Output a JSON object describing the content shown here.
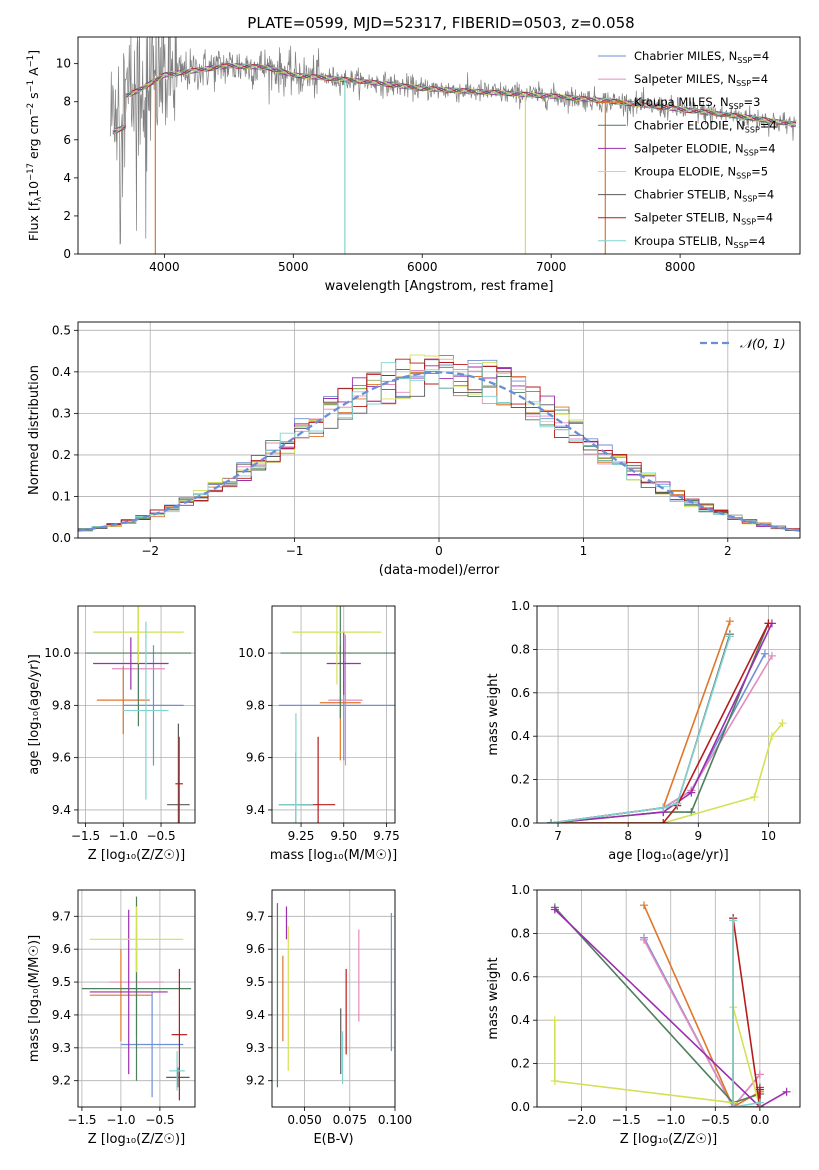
{
  "figure": {
    "title": "PLATE=0599, MJD=52317, FIBERID=0503, z=0.058"
  },
  "colors": {
    "Chabrier MILES": "#6f8fd6",
    "Salpeter MILES": "#e48bc0",
    "Kroupa MILES": "#e0762a",
    "Chabrier ELODIE": "#4d7f5c",
    "Salpeter ELODIE": "#9b2fae",
    "Kroupa ELODIE": "#d4e157",
    "Chabrier STELIB": "#5a5a5a",
    "Salpeter STELIB": "#b71c1c",
    "Kroupa STELIB": "#80d4d0",
    "observed": "#808080",
    "normal_curve": "#6a8fd8"
  },
  "chart_data": [
    {
      "id": "spectrum",
      "type": "line",
      "title": "PLATE=0599, MJD=52317, FIBERID=0503, z=0.058",
      "xlabel": "wavelength [Angstrom, rest frame]",
      "ylabel_parts": [
        "Flux [f",
        "λ",
        "10",
        "−17",
        " erg cm",
        "−2",
        " s",
        "−1",
        " A",
        "−1",
        "]"
      ],
      "xlim": [
        3330,
        8930
      ],
      "ylim": [
        0,
        11.4
      ],
      "xticks": [
        4000,
        5000,
        6000,
        7000,
        8000
      ],
      "yticks": [
        0,
        2,
        4,
        6,
        8,
        10
      ],
      "grid": false,
      "legend_position": "top-right",
      "legend": [
        {
          "label": "Chabrier MILES, N",
          "sub": "SSP",
          "suffix": "=4",
          "key": "Chabrier MILES"
        },
        {
          "label": "Salpeter MILES, N",
          "sub": "SSP",
          "suffix": "=4",
          "key": "Salpeter MILES"
        },
        {
          "label": "Kroupa MILES, N",
          "sub": "SSP",
          "suffix": "=3",
          "key": "Kroupa MILES"
        },
        {
          "label": "Chabrier ELODIE, N",
          "sub": "SSP",
          "suffix": "=4",
          "key": "Chabrier ELODIE"
        },
        {
          "label": "Salpeter ELODIE, N",
          "sub": "SSP",
          "suffix": "=4",
          "key": "Salpeter ELODIE"
        },
        {
          "label": "Kroupa ELODIE, N",
          "sub": "SSP",
          "suffix": "=5",
          "key": "Kroupa ELODIE"
        },
        {
          "label": "Chabrier STELIB, N",
          "sub": "SSP",
          "suffix": "=4",
          "key": "Chabrier STELIB"
        },
        {
          "label": "Salpeter STELIB, N",
          "sub": "SSP",
          "suffix": "=4",
          "key": "Salpeter STELIB"
        },
        {
          "label": "Kroupa STELIB, N",
          "sub": "SSP",
          "suffix": "=4",
          "key": "Kroupa STELIB"
        }
      ],
      "continuum": [
        [
          3600,
          8.0
        ],
        [
          3800,
          8.6
        ],
        [
          4000,
          9.4
        ],
        [
          4200,
          9.6
        ],
        [
          4500,
          9.9
        ],
        [
          4800,
          9.8
        ],
        [
          5000,
          9.4
        ],
        [
          5500,
          9.1
        ],
        [
          6000,
          8.7
        ],
        [
          6500,
          8.5
        ],
        [
          7000,
          8.3
        ],
        [
          7500,
          8.0
        ],
        [
          8000,
          7.6
        ],
        [
          8500,
          7.2
        ],
        [
          8900,
          6.8
        ]
      ],
      "model_dips": [
        {
          "x": 3930,
          "y": 0,
          "key": "Kroupa MILES"
        },
        {
          "x": 5400,
          "y": 0,
          "key": "Kroupa STELIB"
        },
        {
          "x": 6800,
          "y": 0,
          "key": "Kroupa ELODIE"
        },
        {
          "x": 7420,
          "y": 0,
          "key": "Kroupa MILES"
        }
      ]
    },
    {
      "id": "residuals",
      "type": "bar",
      "xlabel": "(data-model)/error",
      "ylabel": "Normed distribution",
      "xlim": [
        -2.5,
        2.5
      ],
      "ylim": [
        0,
        0.52
      ],
      "xticks": [
        -2,
        -1,
        0,
        1,
        2
      ],
      "yticks": [
        0.0,
        0.1,
        0.2,
        0.3,
        0.4,
        0.5
      ],
      "grid": true,
      "legend_position": "top-right",
      "legend": [
        "𝒩(0, 1)"
      ],
      "bin_width": 0.1,
      "normal": {
        "mu": 0,
        "sigma": 1
      }
    },
    {
      "id": "age-vs-Z",
      "type": "scatter",
      "xlabel": "Z [log₁₀(Z/Z☉)]",
      "ylabel": "age  [log₁₀(age/yr)]",
      "xlim": [
        -1.6,
        -0.05
      ],
      "ylim": [
        9.35,
        10.18
      ],
      "xticks": [
        -1.5,
        -1.0,
        -0.5
      ],
      "yticks": [
        9.4,
        9.6,
        9.8,
        10.0
      ],
      "grid": true,
      "points": [
        {
          "key": "Chabrier MILES",
          "x": -0.6,
          "xerr": 0.4,
          "y": 9.8,
          "yerr": 0.23
        },
        {
          "key": "Salpeter MILES",
          "x": -0.8,
          "xerr": 0.35,
          "y": 9.94,
          "yerr": 0.12
        },
        {
          "key": "Kroupa MILES",
          "x": -1.0,
          "xerr": 0.35,
          "y": 9.82,
          "yerr": 0.13
        },
        {
          "key": "Chabrier ELODIE",
          "x": -0.8,
          "xerr": 0.7,
          "y": 10.0,
          "yerr": 0.28
        },
        {
          "key": "Salpeter ELODIE",
          "x": -0.9,
          "xerr": 0.5,
          "y": 9.96,
          "yerr": 0.1
        },
        {
          "key": "Kroupa ELODIE",
          "x": -0.8,
          "xerr": 0.6,
          "y": 10.08,
          "yerr": 0.12
        },
        {
          "key": "Chabrier STELIB",
          "x": -0.27,
          "xerr": 0.15,
          "y": 9.42,
          "yerr": 0.31
        },
        {
          "key": "Salpeter STELIB",
          "x": -0.26,
          "xerr": 0.05,
          "y": 9.5,
          "yerr": 0.18
        },
        {
          "key": "Kroupa STELIB",
          "x": -0.7,
          "xerr": 0.3,
          "y": 9.78,
          "yerr": 0.34
        }
      ]
    },
    {
      "id": "age-vs-mass",
      "type": "scatter",
      "xlabel": "mass [log₁₀(M/M☉)]",
      "ylabel": "",
      "xlim": [
        9.08,
        9.8
      ],
      "ylim": [
        9.35,
        10.18
      ],
      "xticks": [
        9.25,
        9.5,
        9.75
      ],
      "yticks": [
        9.4,
        9.6,
        9.8,
        10.0
      ],
      "grid": true,
      "points": [
        {
          "key": "Chabrier MILES",
          "x": 9.5,
          "xerr": 0.38,
          "y": 9.8,
          "yerr": 0.21
        },
        {
          "key": "Salpeter MILES",
          "x": 9.51,
          "xerr": 0.1,
          "y": 9.82,
          "yerr": 0.25
        },
        {
          "key": "Kroupa MILES",
          "x": 9.48,
          "xerr": 0.12,
          "y": 9.81,
          "yerr": 0.22
        },
        {
          "key": "Chabrier ELODIE",
          "x": 9.48,
          "xerr": 0.35,
          "y": 10.0,
          "yerr": 0.25
        },
        {
          "key": "Salpeter ELODIE",
          "x": 9.5,
          "xerr": 0.1,
          "y": 9.96,
          "yerr": 0.12
        },
        {
          "key": "Kroupa ELODIE",
          "x": 9.46,
          "xerr": 0.26,
          "y": 10.08,
          "yerr": 0.2
        },
        {
          "key": "Chabrier STELIB",
          "x": 9.22,
          "xerr": 0.1,
          "y": 9.42,
          "yerr": 0.2
        },
        {
          "key": "Salpeter STELIB",
          "x": 9.35,
          "xerr": 0.1,
          "y": 9.42,
          "yerr": 0.26
        },
        {
          "key": "Kroupa STELIB",
          "x": 9.22,
          "xerr": 0.1,
          "y": 9.42,
          "yerr": 0.35
        }
      ]
    },
    {
      "id": "mass-weight-vs-age",
      "type": "line",
      "xlabel": "age  [log₁₀(age/yr)]",
      "ylabel": "mass weight",
      "xlim": [
        6.7,
        10.45
      ],
      "ylim": [
        0,
        1.0
      ],
      "xticks": [
        7,
        8,
        9,
        10
      ],
      "yticks": [
        0.0,
        0.2,
        0.4,
        0.6,
        0.8,
        1.0
      ],
      "grid": true,
      "series": [
        {
          "key": "Chabrier MILES",
          "x": [
            6.9,
            8.5,
            8.9,
            9.95
          ],
          "y": [
            0.0,
            0.07,
            0.15,
            0.78
          ]
        },
        {
          "key": "Salpeter MILES",
          "x": [
            6.9,
            8.5,
            8.9,
            10.05
          ],
          "y": [
            0.0,
            0.07,
            0.15,
            0.77
          ]
        },
        {
          "key": "Kroupa MILES",
          "x": [
            6.9,
            8.5,
            9.45
          ],
          "y": [
            0.0,
            0.07,
            0.93
          ]
        },
        {
          "key": "Chabrier ELODIE",
          "x": [
            6.9,
            8.5,
            8.9,
            10.0
          ],
          "y": [
            0.0,
            0.05,
            0.05,
            0.92
          ]
        },
        {
          "key": "Salpeter ELODIE",
          "x": [
            6.9,
            8.5,
            8.9,
            10.05
          ],
          "y": [
            0.0,
            0.05,
            0.14,
            0.92
          ]
        },
        {
          "key": "Kroupa ELODIE",
          "x": [
            6.9,
            8.5,
            9.8,
            10.05,
            10.2
          ],
          "y": [
            0.0,
            0.0,
            0.12,
            0.4,
            0.46
          ]
        },
        {
          "key": "Chabrier STELIB",
          "x": [
            6.9,
            8.5,
            8.7,
            9.45
          ],
          "y": [
            0.0,
            0.07,
            0.09,
            0.87
          ]
        },
        {
          "key": "Salpeter STELIB",
          "x": [
            6.9,
            8.5,
            8.7,
            10.0
          ],
          "y": [
            0.0,
            0.0,
            0.08,
            0.92
          ]
        },
        {
          "key": "Kroupa STELIB",
          "x": [
            6.9,
            8.5,
            8.7,
            9.45
          ],
          "y": [
            0.0,
            0.07,
            0.09,
            0.86
          ]
        }
      ]
    },
    {
      "id": "mass-vs-Z",
      "type": "scatter",
      "xlabel": "Z [log₁₀(Z/Z☉)]",
      "ylabel": "mass [log₁₀(M/M☉)]",
      "xlim": [
        -1.55,
        -0.05
      ],
      "ylim": [
        9.12,
        9.78
      ],
      "xticks": [
        -1.5,
        -1.0,
        -0.5
      ],
      "yticks": [
        9.2,
        9.3,
        9.4,
        9.5,
        9.6,
        9.7
      ],
      "grid": true,
      "points": [
        {
          "key": "Chabrier MILES",
          "x": -0.6,
          "xerr": 0.4,
          "y": 9.31,
          "yerr": 0.16
        },
        {
          "key": "Salpeter MILES",
          "x": -0.8,
          "xerr": 0.35,
          "y": 9.5,
          "yerr": 0.16
        },
        {
          "key": "Kroupa MILES",
          "x": -1.0,
          "xerr": 0.4,
          "y": 9.46,
          "yerr": 0.14
        },
        {
          "key": "Chabrier ELODIE",
          "x": -0.8,
          "xerr": 0.7,
          "y": 9.48,
          "yerr": 0.28
        },
        {
          "key": "Salpeter ELODIE",
          "x": -0.9,
          "xerr": 0.5,
          "y": 9.47,
          "yerr": 0.25
        },
        {
          "key": "Kroupa ELODIE",
          "x": -0.8,
          "xerr": 0.6,
          "y": 9.63,
          "yerr": 0.1
        },
        {
          "key": "Chabrier STELIB",
          "x": -0.27,
          "xerr": 0.15,
          "y": 9.21,
          "yerr": 0.03
        },
        {
          "key": "Salpeter STELIB",
          "x": -0.25,
          "xerr": 0.1,
          "y": 9.34,
          "yerr": 0.2
        },
        {
          "key": "Kroupa STELIB",
          "x": -0.28,
          "xerr": 0.1,
          "y": 9.23,
          "yerr": 0.06
        }
      ]
    },
    {
      "id": "mass-vs-EBV",
      "type": "scatter",
      "xlabel": "E(B-V)",
      "ylabel": "",
      "xlim": [
        0.032,
        0.1
      ],
      "ylim": [
        9.12,
        9.78
      ],
      "xticks": [
        0.05,
        0.075,
        0.1
      ],
      "xtick_labels": [
        "0.050",
        "0.075",
        "0.100"
      ],
      "yticks": [
        9.2,
        9.3,
        9.4,
        9.5,
        9.6,
        9.7
      ],
      "grid": true,
      "points": [
        {
          "key": "Chabrier MILES",
          "x": 0.098,
          "y": 9.5,
          "yerr": 0.21
        },
        {
          "key": "Salpeter MILES",
          "x": 0.08,
          "y": 9.52,
          "yerr": 0.14
        },
        {
          "key": "Kroupa MILES",
          "x": 0.038,
          "y": 9.45,
          "yerr": 0.13
        },
        {
          "key": "Chabrier ELODIE",
          "x": 0.035,
          "y": 9.46,
          "yerr": 0.28
        },
        {
          "key": "Salpeter ELODIE",
          "x": 0.04,
          "y": 9.68,
          "yerr": 0.05
        },
        {
          "key": "Kroupa ELODIE",
          "x": 0.041,
          "y": 9.45,
          "yerr": 0.22
        },
        {
          "key": "Chabrier STELIB",
          "x": 0.07,
          "y": 9.32,
          "yerr": 0.1
        },
        {
          "key": "Salpeter STELIB",
          "x": 0.073,
          "y": 9.41,
          "yerr": 0.13
        },
        {
          "key": "Kroupa STELIB",
          "x": 0.071,
          "y": 9.27,
          "yerr": 0.08
        }
      ]
    },
    {
      "id": "mass-weight-vs-Z",
      "type": "line",
      "xlabel": "Z [log₁₀(Z/Z☉)]",
      "ylabel": "mass weight",
      "xlim": [
        -2.5,
        0.45
      ],
      "ylim": [
        0,
        1.0
      ],
      "xticks": [
        -2.0,
        -1.5,
        -1.0,
        -0.5,
        0.0
      ],
      "yticks": [
        0.0,
        0.2,
        0.4,
        0.6,
        0.8,
        1.0
      ],
      "grid": true,
      "series": [
        {
          "key": "Chabrier MILES",
          "x": [
            -1.3,
            -0.3,
            0.0
          ],
          "y": [
            0.78,
            0.0,
            0.15
          ]
        },
        {
          "key": "Salpeter MILES",
          "x": [
            -1.3,
            -0.3,
            0.0
          ],
          "y": [
            0.77,
            0.0,
            0.15
          ]
        },
        {
          "key": "Kroupa MILES",
          "x": [
            -1.3,
            -0.3,
            0.0
          ],
          "y": [
            0.93,
            0.0,
            0.07
          ]
        },
        {
          "key": "Chabrier ELODIE",
          "x": [
            -2.3,
            -0.3,
            0.0
          ],
          "y": [
            0.92,
            0.02,
            0.06
          ]
        },
        {
          "key": "Salpeter ELODIE",
          "x": [
            -2.3,
            0.0,
            0.3
          ],
          "y": [
            0.91,
            0.0,
            0.07
          ]
        },
        {
          "key": "Kroupa ELODIE",
          "x": [
            -2.3,
            -2.3,
            -0.3,
            -0.3,
            0.0
          ],
          "y": [
            0.4,
            0.12,
            0.02,
            0.46,
            0.0
          ]
        },
        {
          "key": "Chabrier STELIB",
          "x": [
            -0.3,
            -0.3,
            0.0,
            0.0
          ],
          "y": [
            0.87,
            0.0,
            0.0,
            0.09
          ]
        },
        {
          "key": "Salpeter STELIB",
          "x": [
            -0.3,
            0.0,
            0.0
          ],
          "y": [
            0.87,
            0.0,
            0.08
          ]
        },
        {
          "key": "Kroupa STELIB",
          "x": [
            -0.3,
            -0.3,
            0.0
          ],
          "y": [
            0.86,
            0.0,
            0.02
          ]
        }
      ]
    }
  ]
}
